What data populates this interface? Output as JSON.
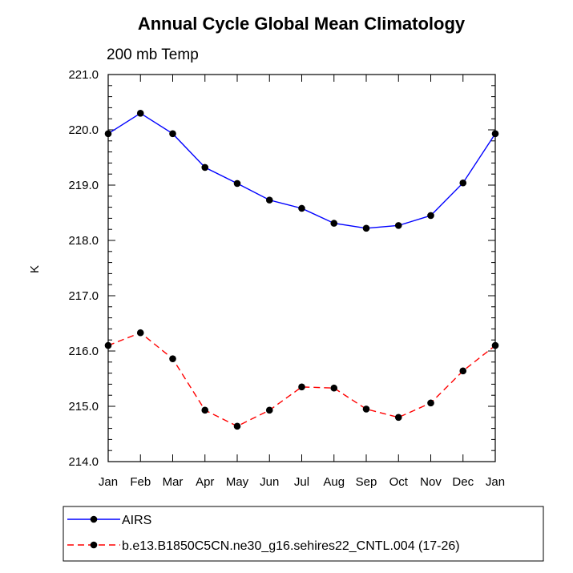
{
  "chart_data": {
    "type": "line",
    "title": "Annual Cycle Global Mean Climatology",
    "subtitle": "200 mb Temp",
    "xlabel": "",
    "ylabel": "K",
    "categories": [
      "Jan",
      "Feb",
      "Mar",
      "Apr",
      "May",
      "Jun",
      "Jul",
      "Aug",
      "Sep",
      "Oct",
      "Nov",
      "Dec",
      "Jan"
    ],
    "ylim": [
      214.0,
      221.0
    ],
    "yticks": [
      "214.0",
      "215.0",
      "216.0",
      "217.0",
      "218.0",
      "219.0",
      "220.0",
      "221.0"
    ],
    "grid": false,
    "legend_position": "bottom",
    "series": [
      {
        "name": "AIRS",
        "color": "#0000ff",
        "style": "solid",
        "values": [
          219.93,
          220.3,
          219.93,
          219.32,
          219.03,
          218.73,
          218.58,
          218.31,
          218.22,
          218.27,
          218.45,
          219.04,
          219.93
        ]
      },
      {
        "name": "b.e13.B1850C5CN.ne30_g16.sehires22_CNTL.004 (17-26)",
        "color": "#ff0000",
        "style": "dashed",
        "values": [
          216.1,
          216.33,
          215.86,
          214.93,
          214.64,
          214.93,
          215.35,
          215.33,
          214.95,
          214.8,
          215.06,
          215.64,
          216.1
        ]
      }
    ]
  }
}
